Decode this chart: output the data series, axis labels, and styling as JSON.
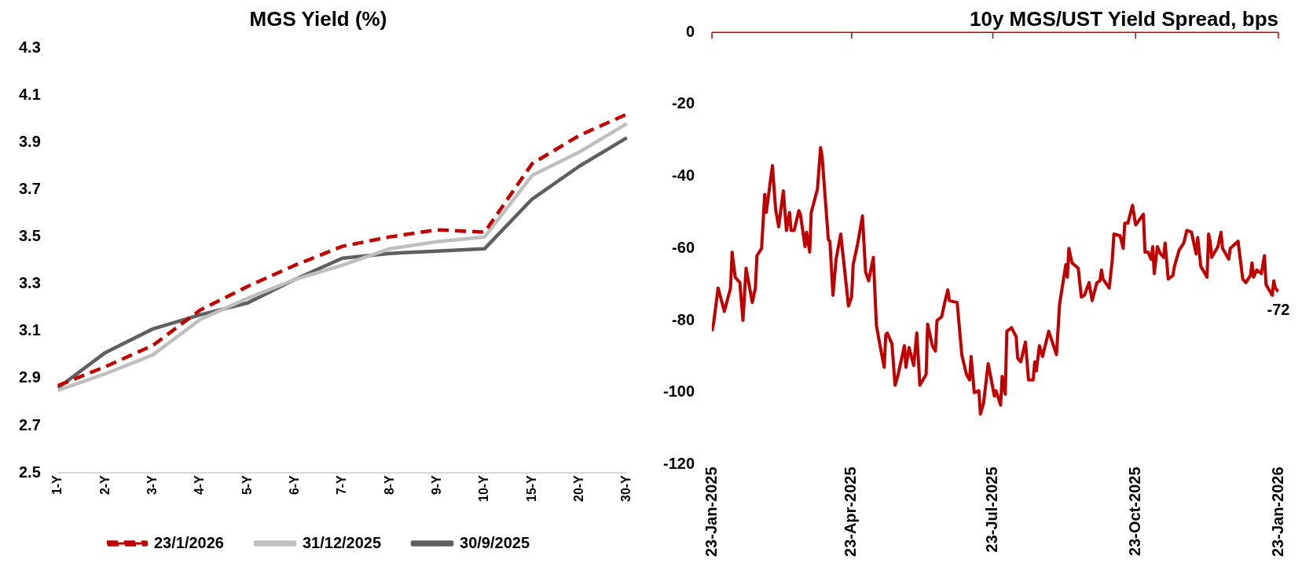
{
  "chart_data": [
    {
      "type": "line",
      "title": "MGS Yield (%)",
      "categories": [
        "1-Y",
        "2-Y",
        "3-Y",
        "4-Y",
        "5-Y",
        "6-Y",
        "7-Y",
        "8-Y",
        "9-Y",
        "10-Y",
        "15-Y",
        "20-Y",
        "30-Y"
      ],
      "series": [
        {
          "name": "23/1/2026",
          "color": "#c00000",
          "line_style": "dashed",
          "values": [
            2.87,
            2.95,
            3.04,
            3.19,
            3.29,
            3.38,
            3.46,
            3.5,
            3.53,
            3.52,
            3.81,
            3.93,
            4.02
          ]
        },
        {
          "name": "31/12/2025",
          "color": "#bfbfbf",
          "values": [
            2.85,
            2.92,
            3.0,
            3.15,
            3.24,
            3.32,
            3.38,
            3.45,
            3.48,
            3.5,
            3.76,
            3.86,
            3.98
          ]
        },
        {
          "name": "30/9/2025",
          "color": "#5f5f5f",
          "values": [
            2.86,
            3.01,
            3.11,
            3.17,
            3.22,
            3.32,
            3.41,
            3.43,
            3.44,
            3.45,
            3.66,
            3.8,
            3.92
          ]
        }
      ],
      "ylim": [
        2.5,
        4.3
      ],
      "yticks": [
        {
          "value": 2.5,
          "label": "2.5"
        },
        {
          "value": 2.7,
          "label": "2.7"
        },
        {
          "value": 2.9,
          "label": "2.9"
        },
        {
          "value": 3.1,
          "label": "3.1"
        },
        {
          "value": 3.3,
          "label": "3.3"
        },
        {
          "value": 3.5,
          "label": "3.5"
        },
        {
          "value": 3.7,
          "label": "3.7"
        },
        {
          "value": 3.9,
          "label": "3.9"
        },
        {
          "value": 4.1,
          "label": "4.1"
        },
        {
          "value": 4.3,
          "label": "4.3"
        }
      ],
      "legend": "bottom"
    },
    {
      "type": "line",
      "title": "10y MGS/UST Yield Spread, bps",
      "x": [
        "2025-01-23",
        "2025-01-24",
        "2025-01-27",
        "2025-01-31",
        "2025-02-04",
        "2025-02-05",
        "2025-02-07",
        "2025-02-10",
        "2025-02-12",
        "2025-02-14",
        "2025-02-18",
        "2025-02-20",
        "2025-02-21",
        "2025-02-24",
        "2025-02-26",
        "2025-02-27",
        "2025-03-03",
        "2025-03-05",
        "2025-03-07",
        "2025-03-10",
        "2025-03-12",
        "2025-03-14",
        "2025-03-15",
        "2025-03-17",
        "2025-03-20",
        "2025-03-21",
        "2025-03-24",
        "2025-03-25",
        "2025-03-27",
        "2025-03-28",
        "2025-04-01",
        "2025-04-03",
        "2025-04-04",
        "2025-04-08",
        "2025-04-09",
        "2025-04-11",
        "2025-04-13",
        "2025-04-16",
        "2025-04-21",
        "2025-04-23",
        "2025-04-24",
        "2025-04-27",
        "2025-04-30",
        "2025-05-02",
        "2025-05-04",
        "2025-05-07",
        "2025-05-09",
        "2025-05-12",
        "2025-05-14",
        "2025-05-15",
        "2025-05-16",
        "2025-05-19",
        "2025-05-21",
        "2025-05-23",
        "2025-05-27",
        "2025-05-28",
        "2025-05-30",
        "2025-06-02",
        "2025-06-04",
        "2025-06-06",
        "2025-06-10",
        "2025-06-11",
        "2025-06-14",
        "2025-06-16",
        "2025-06-17",
        "2025-06-20",
        "2025-06-22",
        "2025-06-24",
        "2025-06-25",
        "2025-06-30",
        "2025-07-03",
        "2025-07-06",
        "2025-07-08",
        "2025-07-09",
        "2025-07-11",
        "2025-07-14",
        "2025-07-15",
        "2025-07-17",
        "2025-07-20",
        "2025-07-24",
        "2025-07-25",
        "2025-07-28",
        "2025-07-29",
        "2025-07-31",
        "2025-08-01",
        "2025-08-04",
        "2025-08-07",
        "2025-08-08",
        "2025-08-10",
        "2025-08-13",
        "2025-08-15",
        "2025-08-18",
        "2025-08-19",
        "2025-08-20",
        "2025-08-22",
        "2025-08-24",
        "2025-08-28",
        "2025-09-02",
        "2025-09-04",
        "2025-09-08",
        "2025-09-09",
        "2025-09-10",
        "2025-09-12",
        "2025-09-16",
        "2025-09-18",
        "2025-09-20",
        "2025-09-23",
        "2025-09-25",
        "2025-09-28",
        "2025-09-30",
        "2025-10-01",
        "2025-10-02",
        "2025-10-06",
        "2025-10-08",
        "2025-10-09",
        "2025-10-13",
        "2025-10-15",
        "2025-10-16",
        "2025-10-18",
        "2025-10-21",
        "2025-10-23",
        "2025-10-28",
        "2025-10-29",
        "2025-10-31",
        "2025-11-02",
        "2025-11-03",
        "2025-11-04",
        "2025-11-06",
        "2025-11-08",
        "2025-11-10",
        "2025-11-11",
        "2025-11-13",
        "2025-11-16",
        "2025-11-17",
        "2025-11-20",
        "2025-11-23",
        "2025-11-25",
        "2025-11-28",
        "2025-12-01",
        "2025-12-02",
        "2025-12-04",
        "2025-12-08",
        "2025-12-09",
        "2025-12-10",
        "2025-12-11",
        "2025-12-15",
        "2025-12-17",
        "2025-12-18",
        "2025-12-22",
        "2025-12-23",
        "2025-12-28",
        "2025-12-31",
        "2026-01-02",
        "2026-01-05",
        "2026-01-06",
        "2026-01-07",
        "2026-01-09",
        "2026-01-12",
        "2026-01-14",
        "2026-01-15",
        "2026-01-19",
        "2026-01-20",
        "2026-01-21",
        "2026-01-23"
      ],
      "series": [
        {
          "color": "#c00000",
          "values": [
            -83,
            -81,
            -71,
            -77.5,
            -71,
            -61,
            -68,
            -69.5,
            -80,
            -65.5,
            -75,
            -71,
            -62,
            -60,
            -45,
            -50,
            -37,
            -49,
            -54,
            -44,
            -55,
            -50,
            -55,
            -55,
            -49.5,
            -50.5,
            -59.5,
            -55.5,
            -61,
            -50,
            -43.5,
            -32,
            -34.5,
            -57.5,
            -58,
            -73,
            -63,
            -56,
            -76,
            -73.5,
            -64.5,
            -58.5,
            -51,
            -66.5,
            -69,
            -62.5,
            -81.5,
            -88.5,
            -93,
            -84,
            -83.5,
            -86.5,
            -98,
            -95,
            -87,
            -93,
            -87.5,
            -92.5,
            -83.5,
            -98,
            -95,
            -81,
            -87,
            -88.5,
            -80,
            -79,
            -75,
            -71.5,
            -74.5,
            -75,
            -89.5,
            -95,
            -96.5,
            -90,
            -100,
            -99.5,
            -106,
            -103,
            -92,
            -101,
            -99.5,
            -103.5,
            -95.5,
            -100.5,
            -83,
            -82,
            -84.5,
            -90.5,
            -91.5,
            -86,
            -96.5,
            -96.5,
            -91.5,
            -94,
            -87,
            -90,
            -83,
            -89.5,
            -75.5,
            -64.5,
            -68,
            -60,
            -64,
            -65.5,
            -73.5,
            -73,
            -69.5,
            -74.5,
            -69.5,
            -69,
            -66,
            -68.5,
            -71,
            -63,
            -56,
            -56.5,
            -60,
            -53,
            -53,
            -48,
            -53.5,
            -50.5,
            -61,
            -61,
            -63,
            -59.5,
            -67,
            -59.5,
            -61.5,
            -62.5,
            -58.5,
            -68.5,
            -67.5,
            -65,
            -60.5,
            -58.5,
            -55,
            -55.5,
            -61.5,
            -57,
            -65,
            -68,
            -56,
            -58,
            -62.5,
            -59.5,
            -55.5,
            -60,
            -63,
            -60,
            -58,
            -68.5,
            -69.5,
            -67.5,
            -64,
            -68,
            -66,
            -67,
            -62,
            -70,
            -73,
            -69,
            -71,
            -72
          ]
        }
      ],
      "xlim": [
        "2025-01-23",
        "2026-01-23"
      ],
      "xticks": [
        {
          "value": "2025-01-23",
          "label": "23-Jan-2025"
        },
        {
          "value": "2025-04-23",
          "label": "23-Apr-2025"
        },
        {
          "value": "2025-07-23",
          "label": "23-Jul-2025"
        },
        {
          "value": "2025-10-23",
          "label": "23-Oct-2025"
        },
        {
          "value": "2026-01-23",
          "label": "23-Jan-2026"
        }
      ],
      "ylim": [
        -120,
        0
      ],
      "yticks": [
        -120,
        -100,
        -80,
        -60,
        -40,
        -20,
        0
      ],
      "annotations": [
        {
          "text": "-72",
          "x": "2026-01-23",
          "y": -72
        }
      ]
    }
  ]
}
